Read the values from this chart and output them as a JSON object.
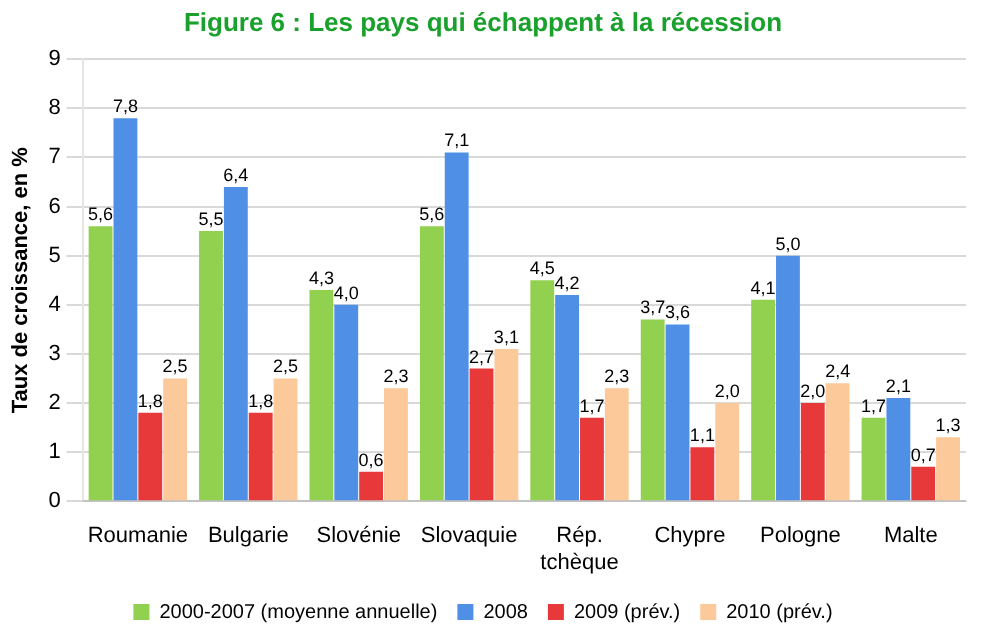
{
  "chart_data": {
    "type": "bar",
    "title": "Figure 6 : Les pays qui échappent à la récession",
    "ylabel": "Taux de croissance, en %",
    "categories": [
      "Roumanie",
      "Bulgarie",
      "Slovénie",
      "Slovaquie",
      "Rép. tchèque",
      "Chypre",
      "Pologne",
      "Malte"
    ],
    "series": [
      {
        "name": "2000-2007 (moyenne annuelle)",
        "color": "#92d050",
        "values": [
          5.6,
          5.5,
          4.3,
          5.6,
          4.5,
          3.7,
          4.1,
          1.7
        ],
        "value_labels": [
          "5,6",
          "5,5",
          "4,3",
          "5,6",
          "4,5",
          "3,7",
          "4,1",
          "1,7"
        ]
      },
      {
        "name": "2008",
        "color": "#4f8fe6",
        "values": [
          7.8,
          6.4,
          4.0,
          7.1,
          4.2,
          3.6,
          5.0,
          2.1
        ],
        "value_labels": [
          "7,8",
          "6,4",
          "4,0",
          "7,1",
          "4,2",
          "3,6",
          "5,0",
          "2,1"
        ]
      },
      {
        "name": "2009 (prév.)",
        "color": "#e8393a",
        "values": [
          1.8,
          1.8,
          0.6,
          2.7,
          1.7,
          1.1,
          2.0,
          0.7
        ],
        "value_labels": [
          "1,8",
          "1,8",
          "0,6",
          "2,7",
          "1,7",
          "1,1",
          "2,0",
          "0,7"
        ]
      },
      {
        "name": "2010 (prév.)",
        "color": "#fbc99a",
        "values": [
          2.5,
          2.5,
          2.3,
          3.1,
          2.3,
          2.0,
          2.4,
          1.3
        ],
        "value_labels": [
          "2,5",
          "2,5",
          "2,3",
          "3,1",
          "2,3",
          "2,0",
          "2,4",
          "1,3"
        ]
      }
    ],
    "ylim": [
      0,
      9
    ],
    "yticks": [
      0,
      1,
      2,
      3,
      4,
      5,
      6,
      7,
      8,
      9
    ],
    "grid": "y",
    "legend": "bottom"
  }
}
